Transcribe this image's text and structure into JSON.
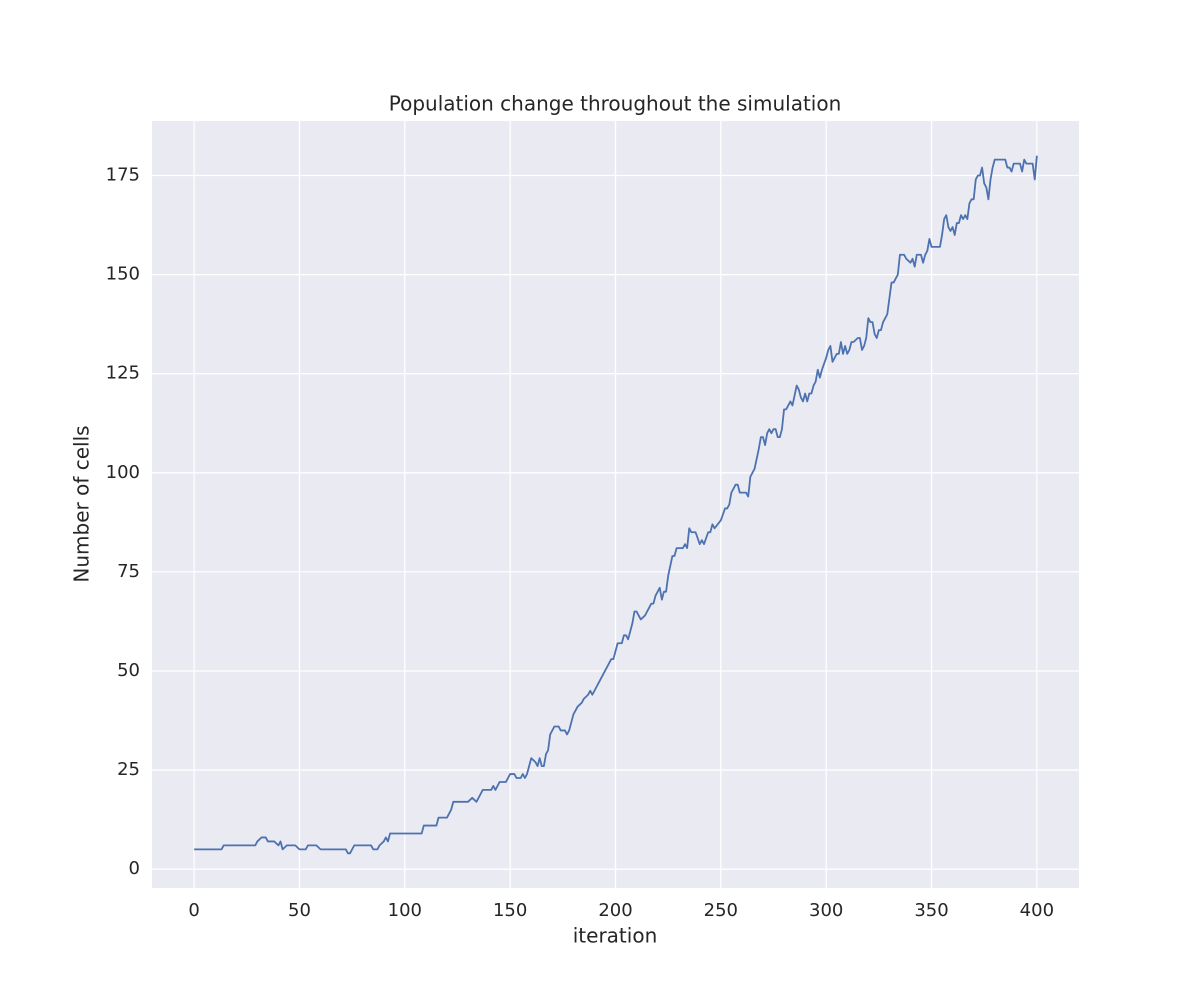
{
  "chart_data": {
    "type": "line",
    "title": "Population change throughout the simulation",
    "x_label": "iteration",
    "y_label": "Number of cells",
    "color": "#4c72b0",
    "grid": true,
    "xlim": [
      -20,
      420
    ],
    "ylim": [
      -4.75,
      188.75
    ],
    "xticks": [
      0,
      50,
      100,
      150,
      200,
      250,
      300,
      350,
      400
    ],
    "yticks": [
      0,
      25,
      50,
      75,
      100,
      125,
      150,
      175
    ],
    "x": [
      0,
      5,
      10,
      13,
      14,
      20,
      25,
      29,
      30,
      32,
      34,
      35,
      38,
      40,
      41,
      42,
      44,
      48,
      50,
      53,
      54,
      58,
      60,
      65,
      70,
      72,
      73,
      74,
      76,
      80,
      84,
      85,
      87,
      88,
      90,
      91,
      92,
      93,
      100,
      105,
      108,
      109,
      115,
      116,
      120,
      122,
      123,
      130,
      132,
      134,
      136,
      137,
      141,
      142,
      143,
      145,
      148,
      150,
      152,
      153,
      155,
      156,
      157,
      158,
      160,
      162,
      163,
      164,
      165,
      166,
      167,
      168,
      169,
      171,
      173,
      174,
      176,
      177,
      178,
      180,
      182,
      184,
      185,
      187,
      188,
      189,
      195,
      198,
      199,
      201,
      203,
      204,
      205,
      206,
      208,
      209,
      210,
      212,
      214,
      216,
      217,
      218,
      219,
      221,
      222,
      223,
      224,
      225,
      227,
      228,
      229,
      232,
      233,
      234,
      235,
      236,
      238,
      240,
      241,
      242,
      244,
      245,
      246,
      247,
      250,
      252,
      253,
      254,
      255,
      257,
      258,
      259,
      262,
      263,
      264,
      266,
      268,
      269,
      270,
      271,
      272,
      273,
      274,
      275,
      276,
      277,
      278,
      279,
      280,
      281,
      282,
      283,
      284,
      286,
      287,
      288,
      289,
      290,
      291,
      292,
      293,
      294,
      295,
      296,
      297,
      298,
      300,
      301,
      302,
      303,
      305,
      306,
      307,
      308,
      309,
      310,
      311,
      312,
      313,
      315,
      316,
      317,
      318,
      319,
      320,
      321,
      322,
      323,
      324,
      325,
      326,
      327,
      328,
      329,
      331,
      332,
      334,
      335,
      337,
      338,
      340,
      341,
      342,
      343,
      345,
      346,
      347,
      348,
      349,
      350,
      354,
      355,
      356,
      357,
      358,
      359,
      360,
      361,
      362,
      363,
      364,
      365,
      366,
      367,
      368,
      369,
      370,
      371,
      372,
      373,
      374,
      375,
      376,
      377,
      378,
      379,
      380,
      381,
      385,
      386,
      387,
      388,
      389,
      392,
      393,
      394,
      395,
      398,
      399,
      400
    ],
    "values": [
      5,
      5,
      5,
      5,
      6,
      6,
      6,
      6,
      7,
      8,
      8,
      7,
      7,
      6,
      7,
      5,
      6,
      6,
      5,
      5,
      6,
      6,
      5,
      5,
      5,
      5,
      4,
      4,
      6,
      6,
      6,
      5,
      5,
      6,
      7,
      8,
      7,
      9,
      9,
      9,
      9,
      11,
      11,
      13,
      13,
      15,
      17,
      17,
      18,
      17,
      19,
      20,
      20,
      21,
      20,
      22,
      22,
      24,
      24,
      23,
      23,
      24,
      23,
      24,
      28,
      27,
      26,
      28,
      26,
      26,
      29,
      30,
      34,
      36,
      36,
      35,
      35,
      34,
      35,
      39,
      41,
      42,
      43,
      44,
      45,
      44,
      50,
      53,
      53,
      57,
      57,
      59,
      59,
      58,
      62,
      65,
      65,
      63,
      64,
      66,
      67,
      67,
      69,
      71,
      68,
      70,
      70,
      74,
      79,
      79,
      81,
      81,
      82,
      81,
      86,
      85,
      85,
      82,
      83,
      82,
      85,
      85,
      87,
      86,
      88,
      91,
      91,
      92,
      95,
      97,
      97,
      95,
      95,
      94,
      99,
      101,
      106,
      109,
      109,
      107,
      110,
      111,
      110,
      111,
      111,
      109,
      109,
      111,
      116,
      116,
      117,
      118,
      117,
      122,
      121,
      119,
      118,
      120,
      118,
      120,
      120,
      122,
      123,
      126,
      124,
      126,
      129,
      131,
      132,
      128,
      130,
      130,
      133,
      130,
      132,
      130,
      131,
      133,
      133,
      134,
      134,
      131,
      132,
      134,
      139,
      138,
      138,
      135,
      134,
      136,
      136,
      138,
      139,
      140,
      148,
      148,
      150,
      155,
      155,
      154,
      153,
      154,
      152,
      155,
      155,
      153,
      155,
      156,
      159,
      157,
      157,
      160,
      164,
      165,
      162,
      161,
      162,
      160,
      163,
      163,
      165,
      164,
      165,
      164,
      168,
      169,
      169,
      174,
      175,
      175,
      177,
      173,
      172,
      169,
      174,
      177,
      179,
      179,
      179,
      177,
      177,
      176,
      178,
      178,
      176,
      179,
      178,
      178,
      174,
      180
    ]
  }
}
